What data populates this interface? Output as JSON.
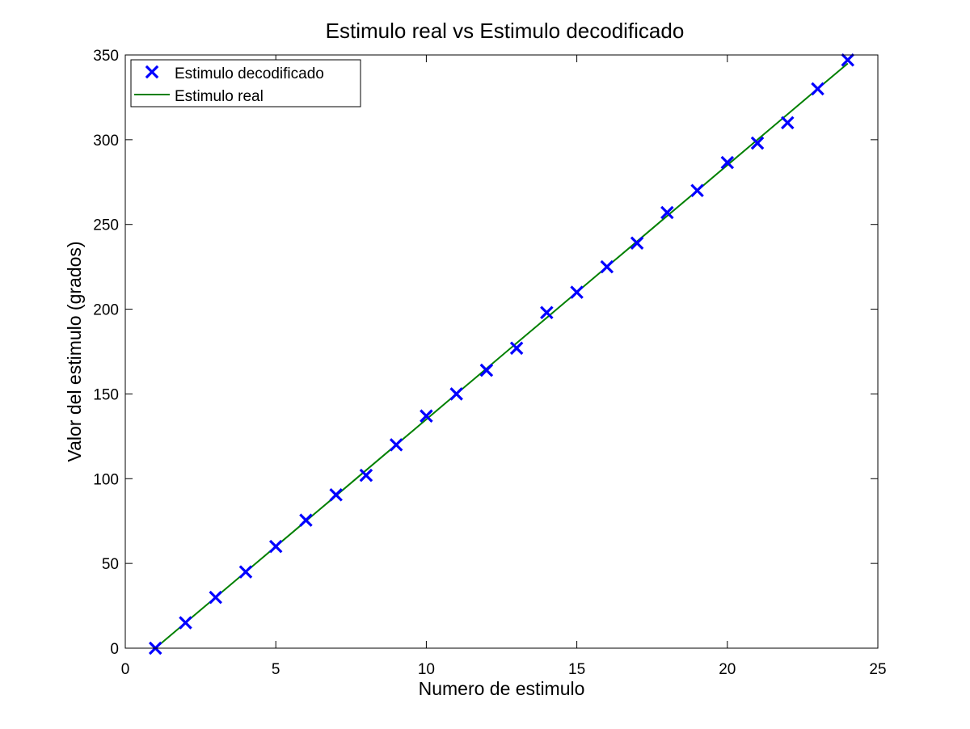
{
  "chart_data": {
    "type": "scatter",
    "title": "Estimulo real vs Estimulo decodificado",
    "xlabel": "Numero de estimulo",
    "ylabel": "Valor del estimulo (grados)",
    "xlim": [
      0,
      25
    ],
    "ylim": [
      0,
      350
    ],
    "xticks": [
      0,
      5,
      10,
      15,
      20,
      25
    ],
    "yticks": [
      0,
      50,
      100,
      150,
      200,
      250,
      300,
      350
    ],
    "grid": false,
    "legend_position": "top-left",
    "series": [
      {
        "name": "Estimulo decodificado",
        "kind": "markers",
        "marker": "x",
        "color": "#0000ff",
        "x": [
          1,
          2,
          3,
          4,
          5,
          6,
          7,
          8,
          9,
          10,
          11,
          12,
          13,
          14,
          15,
          16,
          17,
          18,
          19,
          20,
          21,
          22,
          23,
          24
        ],
        "y": [
          0,
          15,
          30,
          45,
          60,
          75.5,
          90.5,
          102,
          120,
          137,
          150,
          164,
          177,
          198,
          210,
          225,
          239,
          257,
          270,
          286.5,
          298,
          310,
          330,
          347
        ]
      },
      {
        "name": "Estimulo real",
        "kind": "line",
        "color": "#008000",
        "x": [
          1,
          2,
          3,
          4,
          5,
          6,
          7,
          8,
          9,
          10,
          11,
          12,
          13,
          14,
          15,
          16,
          17,
          18,
          19,
          20,
          21,
          22,
          23,
          24
        ],
        "y": [
          0,
          15,
          30,
          45,
          60,
          75,
          90,
          105,
          120,
          135,
          150,
          165,
          180,
          195,
          210,
          225,
          240,
          255,
          270,
          285,
          300,
          315,
          330,
          345
        ]
      }
    ]
  }
}
